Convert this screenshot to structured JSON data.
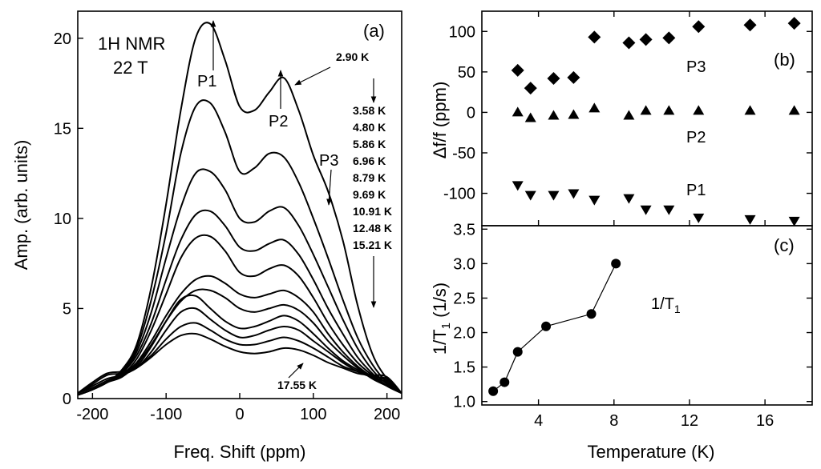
{
  "chart_data": [
    {
      "panel": "a",
      "type": "line",
      "panel_label": "(a)",
      "title_lines": [
        "1H NMR",
        "22 T"
      ],
      "xlabel": "Freq. Shift (ppm)",
      "ylabel": "Amp. (arb. units)",
      "xlim": [
        -220,
        220
      ],
      "ylim": [
        0,
        21.5
      ],
      "xticks": [
        -200,
        -100,
        0,
        100,
        200
      ],
      "yticks": [
        0,
        5,
        10,
        15,
        20
      ],
      "peak_labels": [
        "P1",
        "P2",
        "P3"
      ],
      "series": [
        {
          "name": "2.90 K",
          "x": [
            -220,
            -200,
            -180,
            -160,
            -140,
            -120,
            -100,
            -80,
            -60,
            -40,
            -20,
            0,
            20,
            40,
            60,
            80,
            100,
            120,
            140,
            160,
            180,
            200,
            220
          ],
          "y": [
            0.2,
            0.5,
            0.9,
            1.6,
            3.0,
            6.2,
            10.8,
            16.0,
            20.0,
            20.8,
            18.8,
            16.2,
            16.0,
            17.0,
            17.8,
            16.0,
            13.5,
            11.5,
            8.8,
            5.2,
            2.5,
            1.1,
            0.3
          ]
        },
        {
          "name": "3.58 K",
          "x": [
            -220,
            -200,
            -180,
            -160,
            -140,
            -120,
            -100,
            -80,
            -60,
            -40,
            -20,
            0,
            20,
            40,
            60,
            80,
            100,
            120,
            140,
            160,
            180,
            200,
            220
          ],
          "y": [
            0.2,
            0.5,
            0.9,
            1.5,
            2.8,
            5.5,
            9.2,
            13.6,
            16.2,
            16.4,
            14.8,
            12.6,
            12.8,
            13.6,
            13.4,
            12.0,
            10.0,
            7.8,
            5.5,
            3.4,
            1.9,
            0.9,
            0.3
          ]
        },
        {
          "name": "4.80 K",
          "x": [
            -220,
            -200,
            -180,
            -160,
            -140,
            -120,
            -100,
            -80,
            -60,
            -40,
            -20,
            0,
            20,
            40,
            60,
            80,
            100,
            120,
            140,
            160,
            180,
            200,
            220
          ],
          "y": [
            0.2,
            0.5,
            0.9,
            1.4,
            2.6,
            4.8,
            7.8,
            10.6,
            12.5,
            12.6,
            11.6,
            10.0,
            9.8,
            10.4,
            10.6,
            9.6,
            8.0,
            6.2,
            4.4,
            2.8,
            1.6,
            0.8,
            0.3
          ]
        },
        {
          "name": "5.86 K",
          "x": [
            -220,
            -200,
            -180,
            -160,
            -140,
            -120,
            -100,
            -80,
            -60,
            -40,
            -20,
            0,
            20,
            40,
            60,
            80,
            100,
            120,
            140,
            160,
            180,
            200,
            220
          ],
          "y": [
            0.2,
            0.5,
            0.9,
            1.4,
            2.4,
            4.2,
            6.6,
            8.8,
            10.2,
            10.4,
            9.6,
            8.4,
            8.2,
            8.6,
            8.8,
            8.0,
            6.6,
            5.0,
            3.6,
            2.3,
            1.4,
            0.7,
            0.3
          ]
        },
        {
          "name": "6.96 K",
          "x": [
            -220,
            -200,
            -180,
            -160,
            -140,
            -120,
            -100,
            -80,
            -60,
            -40,
            -20,
            0,
            20,
            40,
            60,
            80,
            100,
            120,
            140,
            160,
            180,
            200,
            220
          ],
          "y": [
            0.2,
            0.5,
            0.9,
            1.3,
            2.2,
            3.8,
            5.8,
            7.8,
            8.9,
            9.0,
            8.2,
            7.0,
            6.8,
            7.2,
            7.4,
            6.8,
            5.6,
            4.2,
            3.0,
            2.0,
            1.3,
            0.7,
            0.3
          ]
        },
        {
          "name": "8.79 K",
          "x": [
            -220,
            -200,
            -180,
            -160,
            -140,
            -120,
            -100,
            -80,
            -60,
            -40,
            -20,
            0,
            20,
            40,
            60,
            80,
            100,
            120,
            140,
            160,
            180,
            200,
            220
          ],
          "y": [
            0.2,
            0.5,
            0.9,
            1.3,
            2.0,
            3.2,
            4.6,
            5.8,
            6.6,
            6.8,
            6.4,
            5.8,
            5.6,
            5.8,
            6.0,
            5.6,
            4.8,
            3.6,
            2.6,
            1.8,
            1.2,
            0.7,
            0.3
          ]
        },
        {
          "name": "9.69 K",
          "x": [
            -220,
            -200,
            -180,
            -160,
            -140,
            -120,
            -100,
            -80,
            -60,
            -40,
            -20,
            0,
            20,
            40,
            60,
            80,
            100,
            120,
            140,
            160,
            180,
            200,
            220
          ],
          "y": [
            0.2,
            0.5,
            0.9,
            1.2,
            1.9,
            3.0,
            4.3,
            5.4,
            6.0,
            6.0,
            5.6,
            5.0,
            4.8,
            5.0,
            5.2,
            4.9,
            4.2,
            3.2,
            2.4,
            1.7,
            1.1,
            0.7,
            0.3
          ]
        },
        {
          "name": "10.91 K",
          "x": [
            -220,
            -200,
            -180,
            -160,
            -140,
            -120,
            -100,
            -80,
            -60,
            -40,
            -20,
            0,
            20,
            40,
            60,
            80,
            100,
            120,
            140,
            160,
            180,
            200,
            220
          ],
          "y": [
            0.3,
            0.9,
            1.4,
            1.5,
            1.8,
            2.9,
            4.3,
            5.5,
            5.7,
            5.0,
            4.3,
            3.9,
            4.0,
            4.3,
            4.6,
            4.3,
            3.6,
            2.8,
            2.1,
            1.6,
            1.2,
            0.9,
            0.3
          ]
        },
        {
          "name": "12.48 K",
          "x": [
            -220,
            -200,
            -180,
            -160,
            -140,
            -120,
            -100,
            -80,
            -60,
            -40,
            -20,
            0,
            20,
            40,
            60,
            80,
            100,
            120,
            140,
            160,
            180,
            200,
            220
          ],
          "y": [
            0.3,
            0.8,
            1.3,
            1.4,
            1.7,
            2.6,
            3.8,
            4.8,
            5.0,
            4.4,
            3.8,
            3.4,
            3.5,
            3.8,
            4.0,
            3.8,
            3.2,
            2.6,
            2.0,
            1.5,
            1.2,
            1.1,
            0.3
          ]
        },
        {
          "name": "15.21 K",
          "x": [
            -220,
            -200,
            -180,
            -160,
            -140,
            -120,
            -100,
            -80,
            -60,
            -40,
            -20,
            0,
            20,
            40,
            60,
            80,
            100,
            120,
            140,
            160,
            180,
            200,
            220
          ],
          "y": [
            0.3,
            0.7,
            1.1,
            1.3,
            1.7,
            2.4,
            3.3,
            4.0,
            4.2,
            3.8,
            3.3,
            3.0,
            3.0,
            3.2,
            3.4,
            3.2,
            2.8,
            2.3,
            1.8,
            1.5,
            1.3,
            1.0,
            0.3
          ]
        },
        {
          "name": "17.55 K",
          "x": [
            -220,
            -200,
            -180,
            -160,
            -140,
            -120,
            -100,
            -80,
            -60,
            -40,
            -20,
            0,
            20,
            40,
            60,
            80,
            100,
            120,
            140,
            160,
            180,
            200,
            220
          ],
          "y": [
            0.3,
            0.6,
            1.0,
            1.3,
            1.7,
            2.3,
            3.0,
            3.5,
            3.6,
            3.3,
            2.9,
            2.6,
            2.5,
            2.6,
            2.8,
            2.7,
            2.4,
            2.0,
            1.7,
            1.4,
            1.3,
            1.2,
            0.3
          ]
        }
      ]
    },
    {
      "panel": "b",
      "type": "scatter",
      "panel_label": "(b)",
      "ylabel": "Δf/f (ppm)",
      "xlim": [
        1,
        18.5
      ],
      "ylim": [
        -140,
        125
      ],
      "yticks": [
        -100,
        -50,
        0,
        50,
        100
      ],
      "series": [
        {
          "name": "P3",
          "marker": "diamond",
          "x": [
            2.9,
            3.58,
            4.8,
            5.86,
            6.96,
            8.79,
            9.69,
            10.91,
            12.48,
            15.21,
            17.55
          ],
          "y": [
            52,
            30,
            42,
            43,
            93,
            86,
            90,
            92,
            106,
            108,
            110
          ]
        },
        {
          "name": "P2",
          "marker": "triangle-up",
          "x": [
            2.9,
            3.58,
            4.8,
            5.86,
            6.96,
            8.79,
            9.69,
            10.91,
            12.48,
            15.21,
            17.55
          ],
          "y": [
            0,
            -7,
            -4,
            -3,
            5,
            -4,
            2,
            2,
            2,
            2,
            2
          ]
        },
        {
          "name": "P1",
          "marker": "triangle-down",
          "x": [
            2.9,
            3.58,
            4.8,
            5.86,
            6.96,
            8.79,
            9.69,
            10.91,
            12.48,
            15.21,
            17.55
          ],
          "y": [
            -90,
            -102,
            -102,
            -100,
            -108,
            -106,
            -120,
            -120,
            -130,
            -132,
            -134
          ]
        }
      ]
    },
    {
      "panel": "c",
      "type": "line",
      "panel_label": "(c)",
      "xlabel": "Temperature (K)",
      "ylabel": "1/T1 (1/s)",
      "xlim": [
        1,
        18.5
      ],
      "ylim": [
        0.95,
        3.55
      ],
      "xticks": [
        4,
        8,
        12,
        16
      ],
      "yticks": [
        1.0,
        1.5,
        2.0,
        2.5,
        3.0,
        3.5
      ],
      "series": [
        {
          "name": "1/T1",
          "x": [
            1.6,
            2.2,
            2.9,
            4.4,
            6.8,
            8.1
          ],
          "y": [
            1.15,
            1.28,
            1.72,
            2.09,
            2.27,
            3.0
          ]
        }
      ]
    }
  ]
}
